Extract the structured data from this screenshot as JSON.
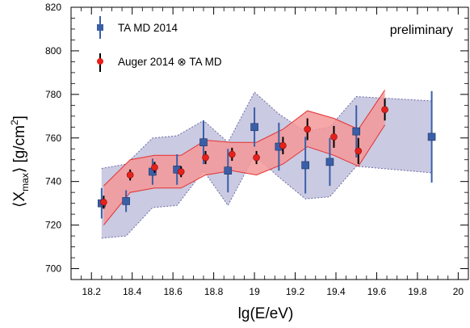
{
  "chart_data": {
    "type": "scatter",
    "annotation": "preliminary",
    "xlabel": "lg(E/eV)",
    "ylabel_parts": {
      "open": "⟨X",
      "sub": "max",
      "close": "⟩ [g/cm",
      "sup": "2",
      "end": "]"
    },
    "xlim": [
      18.1,
      20.05
    ],
    "ylim": [
      695,
      820
    ],
    "xticks": [
      18.2,
      18.4,
      18.6,
      18.8,
      19.0,
      19.2,
      19.4,
      19.6,
      19.8,
      20.0
    ],
    "xtick_labels": [
      "18.2",
      "18.4",
      "18.6",
      "18.8",
      "19",
      "19.2",
      "19.4",
      "19.6",
      "19.8",
      "20"
    ],
    "yticks": [
      700,
      720,
      740,
      760,
      780,
      800,
      820
    ],
    "ytick_labels": [
      "700",
      "720",
      "740",
      "760",
      "780",
      "800",
      "820"
    ],
    "legend": {
      "placement": "top-left"
    },
    "colors": {
      "ta": "#3a5fa8",
      "ta_band_fill": "#c4c4df",
      "ta_band_edge": "#6a6aa6",
      "auger": "#e8201c",
      "auger_err": "#000000",
      "auger_band_fill": "#f59898",
      "auger_band_edge": "#e23030"
    },
    "series": [
      {
        "name": "TA MD 2014",
        "marker": "square",
        "points": [
          {
            "x": 18.25,
            "y": 730,
            "err": 7
          },
          {
            "x": 18.37,
            "y": 731,
            "err": 5
          },
          {
            "x": 18.5,
            "y": 744.5,
            "err": 6
          },
          {
            "x": 18.62,
            "y": 745.5,
            "err": 7
          },
          {
            "x": 18.75,
            "y": 758,
            "err": 10
          },
          {
            "x": 18.87,
            "y": 745,
            "err": 10
          },
          {
            "x": 19.0,
            "y": 765,
            "err": 9
          },
          {
            "x": 19.12,
            "y": 756,
            "err": 11
          },
          {
            "x": 19.25,
            "y": 747.5,
            "err": 13
          },
          {
            "x": 19.37,
            "y": 749,
            "err": 11
          },
          {
            "x": 19.5,
            "y": 763,
            "err": 12
          },
          {
            "x": 19.87,
            "y": 760.5,
            "err": 21
          }
        ]
      },
      {
        "name": "Auger 2014 ⊗ TA MD",
        "marker": "circle",
        "points": [
          {
            "x": 18.26,
            "y": 730.5,
            "err": 3
          },
          {
            "x": 18.39,
            "y": 743,
            "err": 2.5
          },
          {
            "x": 18.51,
            "y": 746.5,
            "err": 2.5
          },
          {
            "x": 18.64,
            "y": 744.5,
            "err": 2.5
          },
          {
            "x": 18.76,
            "y": 751,
            "err": 3
          },
          {
            "x": 18.89,
            "y": 752.5,
            "err": 3
          },
          {
            "x": 19.01,
            "y": 751,
            "err": 3
          },
          {
            "x": 19.14,
            "y": 756.5,
            "err": 4
          },
          {
            "x": 19.26,
            "y": 764,
            "err": 5
          },
          {
            "x": 19.39,
            "y": 760.5,
            "err": 5
          },
          {
            "x": 19.51,
            "y": 754,
            "err": 6
          },
          {
            "x": 19.64,
            "y": 773,
            "err": 5
          }
        ]
      }
    ],
    "bands": [
      {
        "name": "TA MD systematic band",
        "upper": [
          [
            18.25,
            746
          ],
          [
            18.37,
            748
          ],
          [
            18.5,
            760
          ],
          [
            18.62,
            761
          ],
          [
            18.75,
            768
          ],
          [
            18.87,
            758
          ],
          [
            19.0,
            781
          ],
          [
            19.12,
            771
          ],
          [
            19.25,
            763
          ],
          [
            19.37,
            765
          ],
          [
            19.5,
            779
          ],
          [
            19.87,
            777
          ]
        ],
        "lower": [
          [
            18.25,
            714
          ],
          [
            18.37,
            715
          ],
          [
            18.5,
            728
          ],
          [
            18.62,
            729
          ],
          [
            18.75,
            745
          ],
          [
            18.87,
            729
          ],
          [
            19.0,
            752
          ],
          [
            19.12,
            742
          ],
          [
            19.25,
            732
          ],
          [
            19.37,
            733
          ],
          [
            19.5,
            747
          ],
          [
            19.87,
            744
          ]
        ]
      },
      {
        "name": "Auger 2014 ⊗ TA MD band",
        "upper": [
          [
            18.26,
            738
          ],
          [
            18.39,
            750
          ],
          [
            18.51,
            752
          ],
          [
            18.64,
            752
          ],
          [
            18.76,
            759
          ],
          [
            18.89,
            758
          ],
          [
            19.01,
            758
          ],
          [
            19.14,
            764
          ],
          [
            19.26,
            772.5
          ],
          [
            19.39,
            769
          ],
          [
            19.51,
            764
          ],
          [
            19.64,
            782
          ]
        ],
        "lower": [
          [
            18.26,
            720
          ],
          [
            18.39,
            735
          ],
          [
            18.51,
            737
          ],
          [
            18.64,
            737
          ],
          [
            18.76,
            743
          ],
          [
            18.89,
            745
          ],
          [
            19.01,
            743
          ],
          [
            19.14,
            748
          ],
          [
            19.26,
            756
          ],
          [
            19.39,
            752
          ],
          [
            19.51,
            747
          ],
          [
            19.64,
            766
          ]
        ]
      }
    ]
  }
}
